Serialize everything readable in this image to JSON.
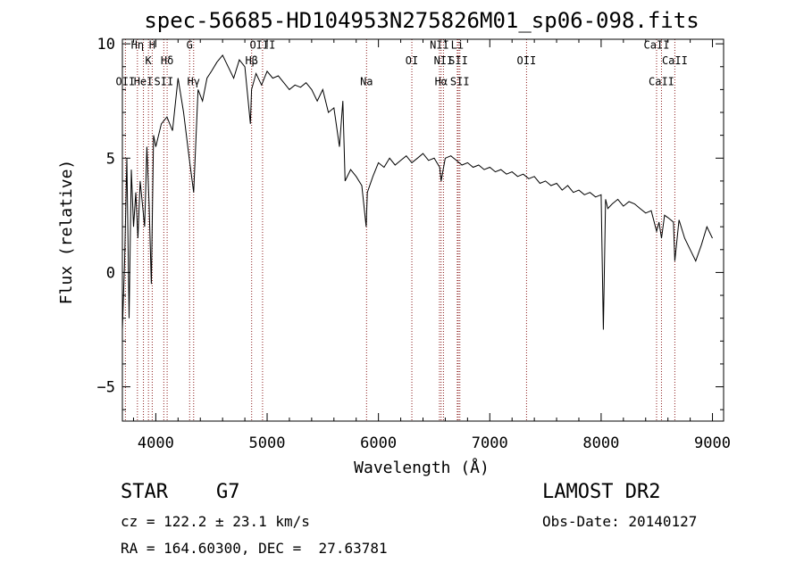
{
  "chart_data": {
    "type": "line",
    "title": "spec-56685-HD104953N275826M01_sp06-098.fits",
    "xlabel": "Wavelength (Å)",
    "ylabel": "Flux (relative)",
    "xlim": [
      3700,
      9100
    ],
    "ylim": [
      -6.5,
      10.2
    ],
    "x_ticks": [
      4000,
      5000,
      6000,
      7000,
      8000,
      9000
    ],
    "x_tick_labels": [
      "4000",
      "5000",
      "6000",
      "7000",
      "8000",
      "9000"
    ],
    "y_ticks": [
      -5,
      0,
      5,
      10
    ],
    "y_tick_labels": [
      "−5",
      "0",
      "5",
      "10"
    ],
    "line_color": "#000000",
    "marker_color": "#8b1a1a",
    "spectrum": {
      "x": [
        3700,
        3720,
        3740,
        3760,
        3780,
        3800,
        3820,
        3840,
        3860,
        3880,
        3900,
        3920,
        3940,
        3960,
        3980,
        4000,
        4050,
        4100,
        4150,
        4200,
        4250,
        4300,
        4340,
        4380,
        4420,
        4460,
        4500,
        4550,
        4600,
        4650,
        4700,
        4750,
        4800,
        4850,
        4860,
        4900,
        4950,
        5000,
        5050,
        5100,
        5150,
        5200,
        5250,
        5300,
        5350,
        5400,
        5450,
        5500,
        5550,
        5600,
        5650,
        5680,
        5700,
        5750,
        5800,
        5850,
        5890,
        5900,
        5950,
        6000,
        6050,
        6100,
        6150,
        6200,
        6250,
        6300,
        6350,
        6400,
        6450,
        6500,
        6550,
        6563,
        6600,
        6650,
        6700,
        6750,
        6800,
        6850,
        6900,
        6950,
        7000,
        7050,
        7100,
        7150,
        7200,
        7250,
        7300,
        7350,
        7400,
        7450,
        7500,
        7550,
        7600,
        7650,
        7700,
        7750,
        7800,
        7850,
        7900,
        7950,
        8000,
        8020,
        8040,
        8060,
        8100,
        8150,
        8200,
        8250,
        8300,
        8350,
        8400,
        8450,
        8498,
        8520,
        8542,
        8570,
        8600,
        8650,
        8662,
        8700,
        8750,
        8800,
        8850,
        8900,
        8950,
        9000
      ],
      "y": [
        -2.5,
        0.5,
        5.0,
        -2.0,
        4.5,
        2.0,
        3.5,
        1.5,
        4.0,
        3.0,
        2.0,
        5.5,
        3.0,
        -0.5,
        6.0,
        5.5,
        6.5,
        6.8,
        6.2,
        8.5,
        7.0,
        5.0,
        3.5,
        8.0,
        7.5,
        8.5,
        8.8,
        9.2,
        9.5,
        9.0,
        8.5,
        9.3,
        9.0,
        6.5,
        8.0,
        8.7,
        8.2,
        8.8,
        8.5,
        8.6,
        8.3,
        8.0,
        8.2,
        8.1,
        8.3,
        8.0,
        7.5,
        8.0,
        7.0,
        7.2,
        5.5,
        7.5,
        4.0,
        4.5,
        4.2,
        3.8,
        2.0,
        3.5,
        4.2,
        4.8,
        4.6,
        5.0,
        4.7,
        4.9,
        5.1,
        4.8,
        5.0,
        5.2,
        4.9,
        5.0,
        4.6,
        4.0,
        5.0,
        5.1,
        4.9,
        4.7,
        4.8,
        4.6,
        4.7,
        4.5,
        4.6,
        4.4,
        4.5,
        4.3,
        4.4,
        4.2,
        4.3,
        4.1,
        4.2,
        3.9,
        4.0,
        3.8,
        3.9,
        3.6,
        3.8,
        3.5,
        3.6,
        3.4,
        3.5,
        3.3,
        3.4,
        -2.5,
        3.2,
        2.8,
        3.0,
        3.2,
        2.9,
        3.1,
        3.0,
        2.8,
        2.6,
        2.7,
        1.8,
        2.2,
        1.5,
        2.5,
        2.4,
        2.2,
        0.5,
        2.3,
        1.5,
        1.0,
        0.5,
        1.2,
        2.0,
        1.5
      ]
    },
    "line_markers": [
      {
        "label": "OII",
        "x": 3727,
        "y": 8.2
      },
      {
        "label": "Hη",
        "x": 3835,
        "y": 9.8
      },
      {
        "label": "H",
        "x": 3968,
        "y": 9.8
      },
      {
        "label": "K",
        "x": 3934,
        "y": 9.1
      },
      {
        "label": "HeI",
        "x": 3889,
        "y": 8.2
      },
      {
        "label": "SII",
        "x": 4072,
        "y": 8.2
      },
      {
        "label": "Hδ",
        "x": 4102,
        "y": 9.1
      },
      {
        "label": "G",
        "x": 4304,
        "y": 9.8
      },
      {
        "label": "Hγ",
        "x": 4340,
        "y": 8.2
      },
      {
        "label": "Hβ",
        "x": 4861,
        "y": 9.1
      },
      {
        "label": "OIII",
        "x": 4959,
        "y": 9.8
      },
      {
        "label": "Na",
        "x": 5893,
        "y": 8.2
      },
      {
        "label": "OI",
        "x": 6300,
        "y": 9.1
      },
      {
        "label": "NII",
        "x": 6548,
        "y": 9.8
      },
      {
        "label": "Li",
        "x": 6708,
        "y": 9.8
      },
      {
        "label": "NII",
        "x": 6584,
        "y": 9.1
      },
      {
        "label": "SII",
        "x": 6717,
        "y": 9.1
      },
      {
        "label": "Hα",
        "x": 6563,
        "y": 8.2
      },
      {
        "label": "SII",
        "x": 6731,
        "y": 8.2
      },
      {
        "label": "OII",
        "x": 7330,
        "y": 9.1
      },
      {
        "label": "CaII",
        "x": 8498,
        "y": 9.8
      },
      {
        "label": "CaII",
        "x": 8662,
        "y": 9.1
      },
      {
        "label": "CaII",
        "x": 8542,
        "y": 8.2
      }
    ]
  },
  "info": {
    "object_class": "STAR",
    "subclass": "G7",
    "survey": "LAMOST DR2",
    "velocity": "cz = 122.2 ± 23.1 km/s",
    "obs_date": "Obs-Date: 20140127",
    "coords": "RA = 164.60300, DEC =  27.63781"
  }
}
